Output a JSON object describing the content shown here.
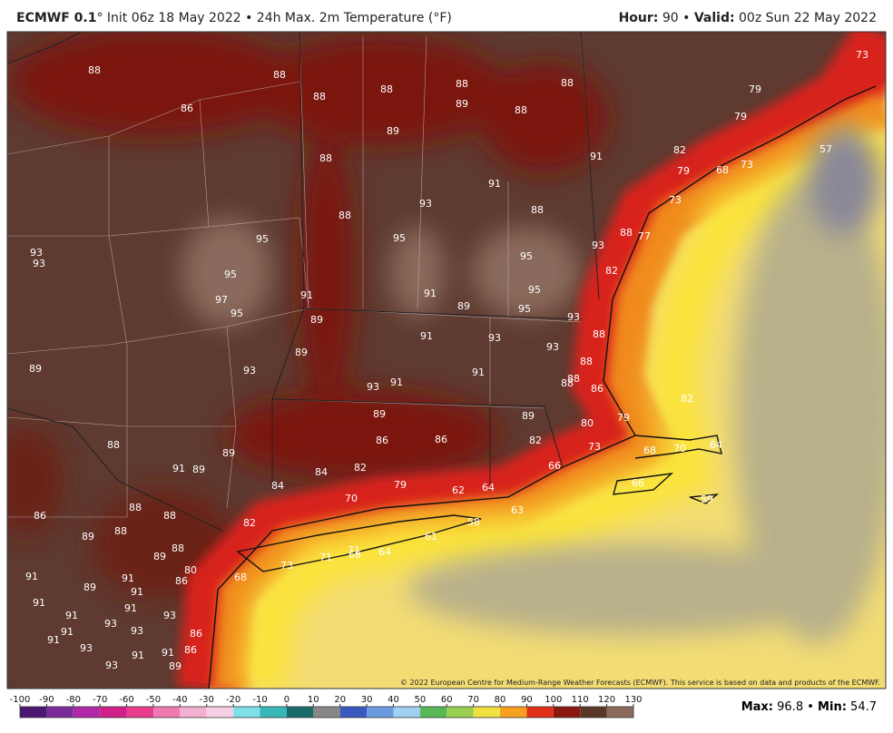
{
  "header": {
    "model": "ECMWF 0.1",
    "title": "° Init 06z 18 May 2022 • 24h Max. 2m Temperature (°F)",
    "hour_label": "Hour:",
    "hour": 90,
    "separator": "•",
    "valid_label": "Valid:",
    "valid": "00z Sun 22 May 2022"
  },
  "map": {
    "labels": [
      88,
      88,
      88,
      86,
      88,
      88,
      89,
      88,
      88,
      73,
      79,
      79,
      89,
      88,
      91,
      82,
      79,
      68,
      73,
      91,
      57,
      73,
      88,
      93,
      88,
      95,
      88,
      77,
      95,
      93,
      93,
      93,
      95,
      95,
      82,
      91,
      95,
      91,
      97,
      89,
      95,
      95,
      93,
      89,
      91,
      88,
      93,
      93,
      89,
      89,
      93,
      91,
      88,
      91,
      93,
      88,
      88,
      86,
      82,
      89,
      89,
      79,
      80,
      86,
      86,
      82,
      73,
      68,
      70,
      64,
      88,
      89,
      91,
      89,
      84,
      82,
      66,
      79,
      66,
      84,
      62,
      64,
      70,
      59,
      88,
      63,
      86,
      88,
      82,
      58,
      88,
      89,
      61,
      89,
      88,
      73,
      71,
      71,
      68,
      64,
      80,
      86,
      91,
      91,
      89,
      68,
      91,
      91,
      91,
      93,
      91,
      93,
      93,
      91,
      86,
      91,
      93,
      91,
      86,
      91,
      93,
      89
    ],
    "credit": "© 2022 European Centre for Medium-Range Weather Forecasts (ECMWF). This service is based on data and products of the ECMWF."
  },
  "colorbar": {
    "ticks": [
      -100,
      -90,
      -80,
      -70,
      -60,
      -50,
      -40,
      -30,
      -20,
      -10,
      0,
      10,
      20,
      30,
      40,
      50,
      60,
      70,
      80,
      90,
      100,
      110,
      120,
      130
    ]
  },
  "stats": {
    "max_label": "Max:",
    "max": 96.8,
    "separator": "•",
    "min_label": "Min:",
    "min": 54.7
  }
}
